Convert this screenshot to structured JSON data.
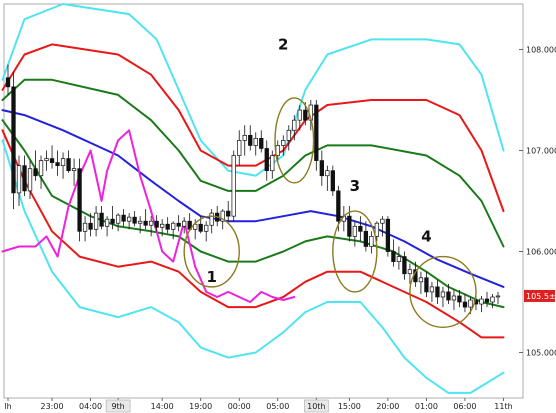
{
  "chart_data": {
    "type": "candlestick",
    "price_axis": {
      "ylim": [
        104.55,
        108.45
      ],
      "ticks": [
        "108.000",
        "107.000",
        "106.000",
        "105.000"
      ],
      "current_price_label": "105.5±"
    },
    "time_axis": {
      "ticks": [
        {
          "label": "lh",
          "bar": 0
        },
        {
          "label": "23:00",
          "bar": 8
        },
        {
          "label": "04:00",
          "bar": 15
        },
        {
          "label": "9th",
          "bar": 20,
          "boxed": true
        },
        {
          "label": "14:00",
          "bar": 28
        },
        {
          "label": "19:00",
          "bar": 35
        },
        {
          "label": "00:00",
          "bar": 42
        },
        {
          "label": "05:00",
          "bar": 49
        },
        {
          "label": "10th",
          "bar": 56,
          "boxed": true
        },
        {
          "label": "15:00",
          "bar": 62
        },
        {
          "label": "20:00",
          "bar": 69
        },
        {
          "label": "01:00",
          "bar": 76
        },
        {
          "label": "06:00",
          "bar": 83
        },
        {
          "label": "11th",
          "bar": 90
        }
      ]
    },
    "bar_count": 90,
    "candles": [
      [
        107.72,
        107.85,
        107.55,
        107.63
      ],
      [
        107.63,
        107.78,
        106.42,
        106.58
      ],
      [
        106.58,
        106.95,
        106.45,
        106.85
      ],
      [
        106.85,
        106.95,
        106.55,
        106.6
      ],
      [
        106.6,
        106.9,
        106.52,
        106.82
      ],
      [
        106.82,
        107.0,
        106.7,
        106.75
      ],
      [
        106.75,
        106.95,
        106.62,
        106.9
      ],
      [
        106.9,
        107.0,
        106.8,
        106.92
      ],
      [
        106.92,
        107.05,
        106.82,
        106.88
      ],
      [
        106.88,
        107.0,
        106.75,
        106.85
      ],
      [
        106.85,
        106.98,
        106.72,
        106.92
      ],
      [
        106.92,
        107.0,
        106.78,
        106.8
      ],
      [
        106.8,
        106.92,
        106.65,
        106.82
      ],
      [
        106.82,
        106.92,
        106.1,
        106.2
      ],
      [
        106.2,
        106.35,
        106.1,
        106.28
      ],
      [
        106.28,
        106.38,
        106.15,
        106.22
      ],
      [
        106.22,
        106.45,
        106.15,
        106.38
      ],
      [
        106.38,
        106.45,
        106.22,
        106.25
      ],
      [
        106.25,
        106.35,
        106.15,
        106.32
      ],
      [
        106.32,
        106.45,
        106.22,
        106.28
      ],
      [
        106.28,
        106.38,
        106.2,
        106.36
      ],
      [
        106.36,
        106.42,
        106.25,
        106.3
      ],
      [
        106.3,
        106.38,
        106.22,
        106.34
      ],
      [
        106.34,
        106.4,
        106.25,
        106.28
      ],
      [
        106.28,
        106.35,
        106.18,
        106.3
      ],
      [
        106.3,
        106.42,
        106.22,
        106.26
      ],
      [
        106.26,
        106.35,
        106.15,
        106.3
      ],
      [
        106.3,
        106.36,
        106.2,
        106.24
      ],
      [
        106.24,
        106.32,
        106.15,
        106.27
      ],
      [
        106.27,
        106.34,
        106.18,
        106.22
      ],
      [
        106.22,
        106.3,
        106.12,
        106.28
      ],
      [
        106.28,
        106.36,
        106.2,
        106.25
      ],
      [
        106.25,
        106.34,
        106.18,
        106.3
      ],
      [
        106.3,
        106.38,
        106.2,
        106.22
      ],
      [
        106.22,
        106.32,
        106.12,
        106.27
      ],
      [
        106.27,
        106.35,
        106.18,
        106.2
      ],
      [
        106.2,
        106.3,
        106.1,
        106.26
      ],
      [
        106.26,
        106.42,
        106.18,
        106.38
      ],
      [
        106.38,
        106.45,
        106.25,
        106.3
      ],
      [
        106.3,
        106.42,
        106.22,
        106.4
      ],
      [
        106.4,
        106.5,
        106.3,
        106.35
      ],
      [
        106.35,
        107.0,
        106.3,
        106.95
      ],
      [
        106.95,
        107.2,
        106.85,
        107.1
      ],
      [
        107.1,
        107.25,
        106.95,
        107.15
      ],
      [
        107.15,
        107.25,
        107.0,
        107.05
      ],
      [
        107.05,
        107.18,
        106.95,
        107.12
      ],
      [
        107.12,
        107.2,
        106.98,
        107.02
      ],
      [
        107.02,
        107.1,
        106.7,
        106.8
      ],
      [
        106.8,
        107.0,
        106.72,
        106.95
      ],
      [
        106.95,
        107.1,
        106.88,
        107.05
      ],
      [
        107.05,
        107.15,
        106.95,
        107.1
      ],
      [
        107.1,
        107.25,
        107.0,
        107.2
      ],
      [
        107.2,
        107.35,
        107.1,
        107.3
      ],
      [
        107.3,
        107.45,
        107.2,
        107.4
      ],
      [
        107.4,
        107.48,
        107.25,
        107.3
      ],
      [
        107.3,
        107.5,
        107.2,
        107.45
      ],
      [
        107.45,
        107.5,
        106.8,
        106.9
      ],
      [
        106.9,
        107.0,
        106.65,
        106.75
      ],
      [
        106.75,
        106.85,
        106.6,
        106.8
      ],
      [
        106.8,
        106.85,
        106.55,
        106.6
      ],
      [
        106.6,
        106.65,
        106.2,
        106.3
      ],
      [
        106.3,
        106.45,
        106.2,
        106.35
      ],
      [
        106.35,
        106.45,
        106.1,
        106.15
      ],
      [
        106.15,
        106.3,
        106.05,
        106.25
      ],
      [
        106.25,
        106.35,
        106.1,
        106.2
      ],
      [
        106.2,
        106.3,
        106.0,
        106.05
      ],
      [
        106.05,
        106.2,
        105.98,
        106.15
      ],
      [
        106.15,
        106.3,
        106.1,
        106.28
      ],
      [
        106.28,
        106.35,
        106.15,
        106.32
      ],
      [
        106.32,
        106.35,
        105.95,
        106.0
      ],
      [
        106.0,
        106.12,
        105.85,
        105.9
      ],
      [
        105.9,
        106.05,
        105.82,
        105.95
      ],
      [
        105.95,
        106.0,
        105.72,
        105.78
      ],
      [
        105.78,
        105.88,
        105.68,
        105.82
      ],
      [
        105.82,
        105.9,
        105.65,
        105.7
      ],
      [
        105.7,
        105.8,
        105.58,
        105.74
      ],
      [
        105.74,
        105.8,
        105.55,
        105.6
      ],
      [
        105.6,
        105.7,
        105.5,
        105.65
      ],
      [
        105.65,
        105.72,
        105.48,
        105.55
      ],
      [
        105.55,
        105.65,
        105.45,
        105.6
      ],
      [
        105.6,
        105.68,
        105.48,
        105.52
      ],
      [
        105.52,
        105.62,
        105.42,
        105.56
      ],
      [
        105.56,
        105.62,
        105.45,
        105.5
      ],
      [
        105.5,
        105.58,
        105.4,
        105.45
      ],
      [
        105.45,
        105.55,
        105.38,
        105.52
      ],
      [
        105.52,
        105.6,
        105.42,
        105.48
      ],
      [
        105.48,
        105.56,
        105.4,
        105.53
      ],
      [
        105.53,
        105.6,
        105.45,
        105.5
      ],
      [
        105.5,
        105.58,
        105.44,
        105.55
      ],
      [
        105.55,
        105.6,
        105.48,
        105.56
      ]
    ],
    "series": [
      {
        "color": "#4fe4f0",
        "points": [
          [
            -1,
            107.7
          ],
          [
            3,
            108.3
          ],
          [
            10,
            108.45
          ],
          [
            22,
            108.35
          ],
          [
            27,
            108.1
          ],
          [
            31,
            107.6
          ],
          [
            35,
            107.1
          ],
          [
            40,
            106.8
          ],
          [
            45,
            106.75
          ],
          [
            50,
            106.95
          ],
          [
            54,
            107.6
          ],
          [
            58,
            107.95
          ],
          [
            66,
            108.1
          ],
          [
            76,
            108.1
          ],
          [
            82,
            108.05
          ],
          [
            86,
            107.75
          ],
          [
            90,
            107.0
          ]
        ]
      },
      {
        "color": "#e81818",
        "points": [
          [
            -1,
            107.6
          ],
          [
            3,
            107.95
          ],
          [
            8,
            108.05
          ],
          [
            20,
            107.95
          ],
          [
            26,
            107.75
          ],
          [
            31,
            107.4
          ],
          [
            35,
            107.0
          ],
          [
            40,
            106.85
          ],
          [
            45,
            106.85
          ],
          [
            50,
            107.0
          ],
          [
            54,
            107.3
          ],
          [
            58,
            107.45
          ],
          [
            66,
            107.5
          ],
          [
            76,
            107.5
          ],
          [
            82,
            107.35
          ],
          [
            86,
            107.0
          ],
          [
            90,
            106.4
          ]
        ]
      },
      {
        "color": "#1a7a1a",
        "points": [
          [
            -1,
            107.5
          ],
          [
            3,
            107.7
          ],
          [
            8,
            107.7
          ],
          [
            20,
            107.55
          ],
          [
            26,
            107.3
          ],
          [
            31,
            107.0
          ],
          [
            35,
            106.7
          ],
          [
            40,
            106.6
          ],
          [
            45,
            106.6
          ],
          [
            50,
            106.75
          ],
          [
            54,
            106.95
          ],
          [
            58,
            107.05
          ],
          [
            66,
            107.05
          ],
          [
            76,
            106.95
          ],
          [
            82,
            106.75
          ],
          [
            86,
            106.5
          ],
          [
            90,
            106.05
          ]
        ]
      },
      {
        "color": "#2222dd",
        "points": [
          [
            -1,
            107.4
          ],
          [
            3,
            107.35
          ],
          [
            10,
            107.2
          ],
          [
            20,
            106.95
          ],
          [
            26,
            106.7
          ],
          [
            31,
            106.5
          ],
          [
            35,
            106.35
          ],
          [
            40,
            106.3
          ],
          [
            45,
            106.3
          ],
          [
            50,
            106.35
          ],
          [
            55,
            106.4
          ],
          [
            60,
            106.35
          ],
          [
            66,
            106.25
          ],
          [
            72,
            106.1
          ],
          [
            78,
            105.92
          ],
          [
            84,
            105.78
          ],
          [
            90,
            105.65
          ]
        ]
      },
      {
        "color": "#1a7a1a",
        "points": [
          [
            -1,
            107.3
          ],
          [
            3,
            107.0
          ],
          [
            8,
            106.55
          ],
          [
            15,
            106.35
          ],
          [
            20,
            106.25
          ],
          [
            26,
            106.2
          ],
          [
            31,
            106.15
          ],
          [
            35,
            106.0
          ],
          [
            40,
            105.9
          ],
          [
            45,
            105.9
          ],
          [
            50,
            106.0
          ],
          [
            54,
            106.1
          ],
          [
            58,
            106.15
          ],
          [
            64,
            106.1
          ],
          [
            70,
            106.0
          ],
          [
            76,
            105.8
          ],
          [
            80,
            105.65
          ],
          [
            86,
            105.5
          ],
          [
            90,
            105.45
          ]
        ]
      },
      {
        "color": "#e81818",
        "points": [
          [
            -1,
            107.2
          ],
          [
            3,
            106.7
          ],
          [
            8,
            106.2
          ],
          [
            13,
            105.95
          ],
          [
            20,
            105.85
          ],
          [
            26,
            105.9
          ],
          [
            31,
            105.8
          ],
          [
            35,
            105.6
          ],
          [
            40,
            105.45
          ],
          [
            45,
            105.45
          ],
          [
            50,
            105.55
          ],
          [
            54,
            105.7
          ],
          [
            58,
            105.8
          ],
          [
            64,
            105.8
          ],
          [
            70,
            105.65
          ],
          [
            76,
            105.5
          ],
          [
            82,
            105.3
          ],
          [
            86,
            105.15
          ],
          [
            90,
            105.15
          ]
        ]
      },
      {
        "color": "#4fe4f0",
        "points": [
          [
            -1,
            107.1
          ],
          [
            3,
            106.4
          ],
          [
            8,
            105.8
          ],
          [
            13,
            105.45
          ],
          [
            20,
            105.35
          ],
          [
            26,
            105.45
          ],
          [
            31,
            105.3
          ],
          [
            35,
            105.05
          ],
          [
            40,
            104.95
          ],
          [
            45,
            105.0
          ],
          [
            50,
            105.2
          ],
          [
            54,
            105.4
          ],
          [
            58,
            105.5
          ],
          [
            64,
            105.5
          ],
          [
            68,
            105.25
          ],
          [
            72,
            104.95
          ],
          [
            76,
            104.75
          ],
          [
            80,
            104.6
          ],
          [
            84,
            104.6
          ],
          [
            90,
            104.8
          ]
        ]
      },
      {
        "color": "#ee22dd",
        "points": [
          [
            -1,
            106.0
          ],
          [
            2,
            106.05
          ],
          [
            5,
            106.05
          ],
          [
            7,
            106.15
          ],
          [
            9,
            105.95
          ],
          [
            11,
            106.45
          ],
          [
            13,
            106.75
          ],
          [
            15,
            107.0
          ],
          [
            17,
            106.5
          ],
          [
            18,
            106.8
          ],
          [
            20,
            107.1
          ],
          [
            22,
            107.2
          ],
          [
            24,
            106.75
          ],
          [
            26,
            106.4
          ],
          [
            28,
            106.0
          ],
          [
            30,
            105.9
          ],
          [
            32,
            106.3
          ],
          [
            34,
            105.85
          ],
          [
            36,
            105.6
          ],
          [
            38,
            105.55
          ],
          [
            40,
            105.6
          ],
          [
            42,
            105.55
          ],
          [
            44,
            105.5
          ],
          [
            46,
            105.6
          ],
          [
            48,
            105.55
          ],
          [
            50,
            105.52
          ],
          [
            52,
            105.55
          ]
        ]
      }
    ],
    "annotations": [
      {
        "label": "1",
        "bar": 37,
        "price": 105.7,
        "circle": {
          "bar": 37,
          "price": 106.0,
          "rx": 5,
          "ry": 0.35
        }
      },
      {
        "label": "2",
        "bar": 50,
        "price": 108.0,
        "circle": {
          "bar": 52,
          "price": 107.1,
          "rx": 3.5,
          "ry": 0.42
        }
      },
      {
        "label": "3",
        "bar": 63,
        "price": 106.6,
        "circle": {
          "bar": 63,
          "price": 106.0,
          "rx": 4,
          "ry": 0.4
        }
      },
      {
        "label": "4",
        "bar": 76,
        "price": 106.1,
        "circle": {
          "bar": 79,
          "price": 105.6,
          "rx": 6,
          "ry": 0.35
        }
      }
    ]
  }
}
